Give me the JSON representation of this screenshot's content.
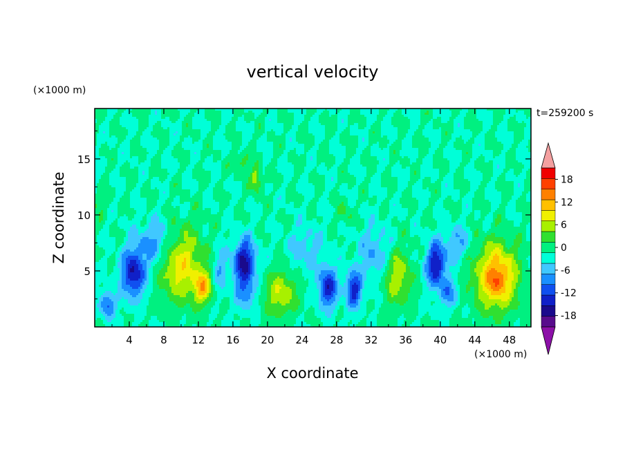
{
  "chart_data": {
    "type": "heatmap",
    "title": "vertical velocity",
    "xlabel": "X coordinate",
    "ylabel": "Z coordinate",
    "x_unit": "(×1000 m)",
    "y_unit": "(×1000 m)",
    "time_label": "t=259200 s",
    "xlim": [
      0,
      50.5
    ],
    "ylim": [
      0,
      19.5
    ],
    "x_ticks": [
      4,
      8,
      12,
      16,
      20,
      24,
      28,
      32,
      36,
      40,
      44,
      48
    ],
    "y_ticks": [
      5,
      10,
      15
    ],
    "grid": false,
    "colorbar": {
      "levels": [
        -21,
        -18,
        -15,
        -12,
        -9,
        -6,
        -3,
        0,
        3,
        6,
        9,
        12,
        15,
        18,
        21
      ],
      "tick_labels": [
        18,
        12,
        6,
        0,
        -6,
        -12,
        -18
      ],
      "colors": [
        "#580c8c",
        "#1a0a8c",
        "#1020c8",
        "#1050f0",
        "#1a90ff",
        "#40c8ff",
        "#00ffd8",
        "#00f080",
        "#30e030",
        "#a8f000",
        "#f0f000",
        "#ffc000",
        "#ff8000",
        "#ff4000",
        "#f00000"
      ],
      "over_color": "#f4a0a0",
      "under_color": "#8c10a8"
    },
    "features": [
      {
        "x": 4.5,
        "z": 4.8,
        "w": -15,
        "sx": 1.4,
        "sz": 2.2
      },
      {
        "x": 1.5,
        "z": 2.0,
        "w": -10,
        "sx": 0.9,
        "sz": 1.2
      },
      {
        "x": 10.0,
        "z": 5.5,
        "w": 11,
        "sx": 2.6,
        "sz": 3.2
      },
      {
        "x": 12.5,
        "z": 3.5,
        "w": 12,
        "sx": 1.0,
        "sz": 1.4
      },
      {
        "x": 17.3,
        "z": 5.8,
        "w": -16,
        "sx": 1.3,
        "sz": 2.0
      },
      {
        "x": 17.5,
        "z": 3.0,
        "w": -7,
        "sx": 1.2,
        "sz": 1.5
      },
      {
        "x": 21.5,
        "z": 3.0,
        "w": 9,
        "sx": 1.8,
        "sz": 2.0
      },
      {
        "x": 18.7,
        "z": 13.2,
        "w": 9,
        "sx": 0.6,
        "sz": 1.1
      },
      {
        "x": 17.0,
        "z": 14.8,
        "w": 5,
        "sx": 0.8,
        "sz": 0.8
      },
      {
        "x": 27.0,
        "z": 3.5,
        "w": -14,
        "sx": 1.1,
        "sz": 1.8
      },
      {
        "x": 30.0,
        "z": 3.3,
        "w": -14,
        "sx": 0.9,
        "sz": 1.6
      },
      {
        "x": 35.0,
        "z": 4.5,
        "w": 9,
        "sx": 1.6,
        "sz": 2.5
      },
      {
        "x": 39.5,
        "z": 5.5,
        "w": -15,
        "sx": 1.2,
        "sz": 2.0
      },
      {
        "x": 41.0,
        "z": 3.0,
        "w": -8,
        "sx": 1.0,
        "sz": 1.2
      },
      {
        "x": 46.5,
        "z": 4.5,
        "w": 15,
        "sx": 2.5,
        "sz": 3.0
      },
      {
        "x": 46.5,
        "z": 4.0,
        "w": 4,
        "sx": 1.0,
        "sz": 1.2
      },
      {
        "x": 7.0,
        "z": 7.5,
        "w": -8,
        "sx": 2.0,
        "sz": 2.0
      },
      {
        "x": 32.5,
        "z": 6.5,
        "w": -6,
        "sx": 2.0,
        "sz": 2.5
      },
      {
        "x": 24.5,
        "z": 7.0,
        "w": -5,
        "sx": 2.0,
        "sz": 2.0
      },
      {
        "x": 42.0,
        "z": 7.5,
        "w": -6,
        "sx": 1.5,
        "sz": 1.5
      },
      {
        "x": 14.5,
        "z": 5.0,
        "w": -6,
        "sx": 0.8,
        "sz": 2.0
      },
      {
        "x": 0.5,
        "z": 11.0,
        "w": 3,
        "sx": 1.0,
        "sz": 1.0
      },
      {
        "x": 29.0,
        "z": 10.0,
        "w": 4,
        "sx": 0.8,
        "sz": 1.0
      }
    ]
  }
}
